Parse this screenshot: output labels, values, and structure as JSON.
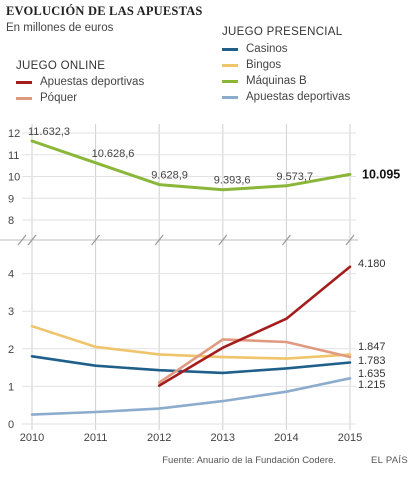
{
  "header": {
    "title": "EVOLUCIÓN DE LAS APUESTAS",
    "subtitle": "En millones de euros"
  },
  "legend": {
    "online_heading": "JUEGO ONLINE",
    "presencial_heading": "JUEGO PRESENCIAL",
    "online_items": [
      {
        "label": "Apuestas deportivas",
        "color": "#a51c1c"
      },
      {
        "label": "Póquer",
        "color": "#df9a80"
      }
    ],
    "presencial_items": [
      {
        "label": "Casinos",
        "color": "#1f5f8a"
      },
      {
        "label": "Bingos",
        "color": "#efc46b"
      },
      {
        "label": "Máquinas B",
        "color": "#8ab63a"
      },
      {
        "label": "Apuestas deportivas",
        "color": "#8caccd"
      }
    ]
  },
  "footer": {
    "source": "Fuente: Anuario de la Fundación Codere.",
    "brand": "EL PAÍS"
  },
  "chart_data": {
    "type": "line",
    "x": [
      "2010",
      "2011",
      "2012",
      "2013",
      "2014",
      "2015"
    ],
    "upper_panel": {
      "yticks": [
        "8",
        "9",
        "10",
        "11",
        "12"
      ],
      "ylim": [
        8,
        12
      ],
      "series": [
        {
          "name": "Máquinas B",
          "group": "JUEGO PRESENCIAL",
          "color": "#8ab63a",
          "values": [
            11.6323,
            10.6286,
            9.6289,
            9.3936,
            9.5737,
            10.095
          ],
          "labels": [
            "11.632,3",
            "10.628,6",
            "9.628,9",
            "9.393,6",
            "9.573,7",
            "10.095"
          ]
        }
      ]
    },
    "lower_panel": {
      "yticks": [
        "0",
        "1",
        "2",
        "3",
        "4"
      ],
      "ylim": [
        0,
        4.5
      ],
      "series": [
        {
          "name": "Apuestas deportivas",
          "group": "JUEGO ONLINE",
          "color": "#a51c1c",
          "values": [
            null,
            null,
            1.02,
            2.03,
            2.8,
            4.18
          ],
          "end_label": "4.180"
        },
        {
          "name": "Póquer",
          "group": "JUEGO ONLINE",
          "color": "#df9a80",
          "values": [
            null,
            null,
            1.1,
            2.25,
            2.18,
            1.783
          ],
          "end_label": "1.783"
        },
        {
          "name": "Bingos",
          "group": "JUEGO PRESENCIAL",
          "color": "#efc46b",
          "values": [
            2.6,
            2.05,
            1.85,
            1.78,
            1.74,
            1.847
          ],
          "end_label": "1.847"
        },
        {
          "name": "Casinos",
          "group": "JUEGO PRESENCIAL",
          "color": "#1f5f8a",
          "values": [
            1.8,
            1.55,
            1.43,
            1.36,
            1.48,
            1.635
          ],
          "end_label": "1.635"
        },
        {
          "name": "Apuestas deportivas",
          "group": "JUEGO PRESENCIAL",
          "color": "#8caccd",
          "values": [
            0.25,
            0.32,
            0.41,
            0.61,
            0.86,
            1.215
          ],
          "end_label": "1.215"
        }
      ]
    }
  }
}
